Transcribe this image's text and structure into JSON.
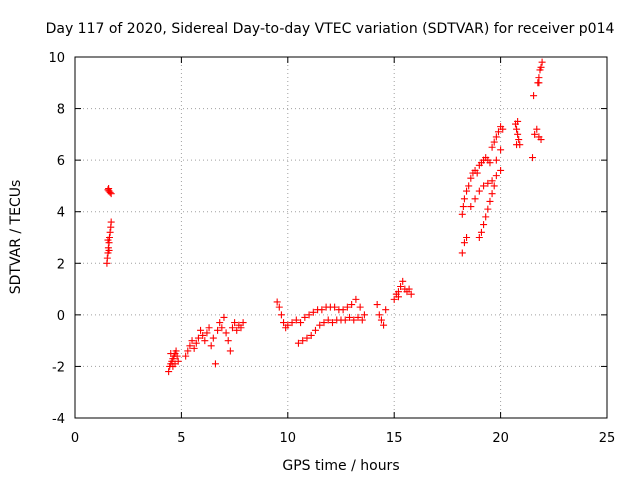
{
  "chart_data": {
    "type": "scatter",
    "title": "Day 117 of 2020, Sidereal Day-to-day VTEC variation (SDTVAR) for receiver p014",
    "xlabel": "GPS time / hours",
    "ylabel": "SDTVAR / TECUs",
    "xlim": [
      0,
      25
    ],
    "ylim": [
      -4,
      10
    ],
    "xticks": [
      0,
      5,
      10,
      15,
      20,
      25
    ],
    "yticks": [
      -4,
      -2,
      0,
      2,
      4,
      6,
      8,
      10
    ],
    "grid": true,
    "marker": "+",
    "series": [
      {
        "name": "SDTVAR",
        "color": "#ff0000",
        "points": [
          [
            1.55,
            4.85
          ],
          [
            1.6,
            4.8
          ],
          [
            1.65,
            4.75
          ],
          [
            1.7,
            4.7
          ],
          [
            1.58,
            4.9
          ],
          [
            1.5,
            2.0
          ],
          [
            1.52,
            2.2
          ],
          [
            1.55,
            2.4
          ],
          [
            1.57,
            2.6
          ],
          [
            1.6,
            2.8
          ],
          [
            1.62,
            3.0
          ],
          [
            1.65,
            3.2
          ],
          [
            1.68,
            3.4
          ],
          [
            1.7,
            3.6
          ],
          [
            1.55,
            2.9
          ],
          [
            1.6,
            2.5
          ],
          [
            4.4,
            -2.2
          ],
          [
            4.45,
            -2.0
          ],
          [
            4.5,
            -1.9
          ],
          [
            4.55,
            -1.8
          ],
          [
            4.6,
            -1.7
          ],
          [
            4.65,
            -1.6
          ],
          [
            4.7,
            -1.5
          ],
          [
            4.75,
            -1.4
          ],
          [
            4.8,
            -1.6
          ],
          [
            4.85,
            -1.8
          ],
          [
            4.5,
            -1.5
          ],
          [
            4.6,
            -2.0
          ],
          [
            4.7,
            -1.9
          ],
          [
            5.2,
            -1.6
          ],
          [
            5.3,
            -1.4
          ],
          [
            5.4,
            -1.2
          ],
          [
            5.5,
            -1.0
          ],
          [
            5.6,
            -1.3
          ],
          [
            5.7,
            -1.1
          ],
          [
            5.8,
            -0.9
          ],
          [
            5.9,
            -0.6
          ],
          [
            6.0,
            -0.8
          ],
          [
            6.1,
            -1.0
          ],
          [
            6.2,
            -0.7
          ],
          [
            6.3,
            -0.5
          ],
          [
            6.4,
            -1.2
          ],
          [
            6.5,
            -0.9
          ],
          [
            6.6,
            -1.9
          ],
          [
            6.7,
            -0.6
          ],
          [
            6.8,
            -0.3
          ],
          [
            6.9,
            -0.5
          ],
          [
            7.0,
            -0.1
          ],
          [
            7.1,
            -0.7
          ],
          [
            7.2,
            -1.0
          ],
          [
            7.3,
            -1.4
          ],
          [
            7.4,
            -0.5
          ],
          [
            7.5,
            -0.3
          ],
          [
            7.6,
            -0.6
          ],
          [
            7.7,
            -0.4
          ],
          [
            7.8,
            -0.5
          ],
          [
            7.9,
            -0.3
          ],
          [
            9.5,
            0.5
          ],
          [
            9.6,
            0.3
          ],
          [
            9.7,
            0.0
          ],
          [
            9.8,
            -0.3
          ],
          [
            9.9,
            -0.5
          ],
          [
            10.0,
            -0.4
          ],
          [
            10.2,
            -0.3
          ],
          [
            10.4,
            -0.2
          ],
          [
            10.6,
            -0.3
          ],
          [
            10.8,
            -0.1
          ],
          [
            11.0,
            0.0
          ],
          [
            11.2,
            0.1
          ],
          [
            11.4,
            0.2
          ],
          [
            11.6,
            0.2
          ],
          [
            11.8,
            0.3
          ],
          [
            12.0,
            0.3
          ],
          [
            12.2,
            0.3
          ],
          [
            12.4,
            0.2
          ],
          [
            12.6,
            0.2
          ],
          [
            12.8,
            0.3
          ],
          [
            13.0,
            0.4
          ],
          [
            13.2,
            0.6
          ],
          [
            13.4,
            0.3
          ],
          [
            10.5,
            -1.1
          ],
          [
            10.7,
            -1.0
          ],
          [
            10.9,
            -0.9
          ],
          [
            11.1,
            -0.8
          ],
          [
            11.3,
            -0.6
          ],
          [
            11.5,
            -0.4
          ],
          [
            11.7,
            -0.3
          ],
          [
            11.9,
            -0.2
          ],
          [
            12.1,
            -0.3
          ],
          [
            12.3,
            -0.2
          ],
          [
            12.5,
            -0.2
          ],
          [
            12.7,
            -0.2
          ],
          [
            12.9,
            -0.1
          ],
          [
            13.1,
            -0.2
          ],
          [
            13.3,
            -0.1
          ],
          [
            13.5,
            -0.2
          ],
          [
            13.6,
            0.0
          ],
          [
            14.2,
            0.4
          ],
          [
            14.3,
            0.0
          ],
          [
            14.4,
            -0.2
          ],
          [
            14.5,
            -0.4
          ],
          [
            14.6,
            0.2
          ],
          [
            15.0,
            0.6
          ],
          [
            15.1,
            0.8
          ],
          [
            15.2,
            0.9
          ],
          [
            15.3,
            1.1
          ],
          [
            15.4,
            1.3
          ],
          [
            15.5,
            1.0
          ],
          [
            15.6,
            0.9
          ],
          [
            15.7,
            1.0
          ],
          [
            15.8,
            0.8
          ],
          [
            15.2,
            0.7
          ],
          [
            18.2,
            2.4
          ],
          [
            18.3,
            2.8
          ],
          [
            18.4,
            3.0
          ],
          [
            18.2,
            3.9
          ],
          [
            18.25,
            4.2
          ],
          [
            18.3,
            4.5
          ],
          [
            18.4,
            4.8
          ],
          [
            18.5,
            5.0
          ],
          [
            18.6,
            5.3
          ],
          [
            18.7,
            5.5
          ],
          [
            18.8,
            5.6
          ],
          [
            18.9,
            5.5
          ],
          [
            19.0,
            5.8
          ],
          [
            19.1,
            5.9
          ],
          [
            19.2,
            6.0
          ],
          [
            19.3,
            6.1
          ],
          [
            19.4,
            6.0
          ],
          [
            19.5,
            5.9
          ],
          [
            18.6,
            4.2
          ],
          [
            18.8,
            4.5
          ],
          [
            19.0,
            4.8
          ],
          [
            19.2,
            5.0
          ],
          [
            19.4,
            5.1
          ],
          [
            19.6,
            5.2
          ],
          [
            19.8,
            5.4
          ],
          [
            20.0,
            5.6
          ],
          [
            19.0,
            3.0
          ],
          [
            19.1,
            3.2
          ],
          [
            19.2,
            3.5
          ],
          [
            19.3,
            3.8
          ],
          [
            19.4,
            4.1
          ],
          [
            19.5,
            4.4
          ],
          [
            19.6,
            4.7
          ],
          [
            19.7,
            5.0
          ],
          [
            19.6,
            6.5
          ],
          [
            19.7,
            6.7
          ],
          [
            19.8,
            6.9
          ],
          [
            19.9,
            7.1
          ],
          [
            20.0,
            7.3
          ],
          [
            20.1,
            7.2
          ],
          [
            19.8,
            6.0
          ],
          [
            20.0,
            6.4
          ],
          [
            20.7,
            7.4
          ],
          [
            20.75,
            7.2
          ],
          [
            20.8,
            7.0
          ],
          [
            20.85,
            6.8
          ],
          [
            20.9,
            6.6
          ],
          [
            20.8,
            7.5
          ],
          [
            20.75,
            6.6
          ],
          [
            21.5,
            6.1
          ],
          [
            21.55,
            8.5
          ],
          [
            21.6,
            7.0
          ],
          [
            21.7,
            7.2
          ],
          [
            21.8,
            6.9
          ],
          [
            21.9,
            6.8
          ],
          [
            21.75,
            9.0
          ],
          [
            21.8,
            9.2
          ],
          [
            21.85,
            9.5
          ],
          [
            21.9,
            9.6
          ],
          [
            21.95,
            9.8
          ],
          [
            21.8,
            9.0
          ]
        ]
      }
    ]
  }
}
